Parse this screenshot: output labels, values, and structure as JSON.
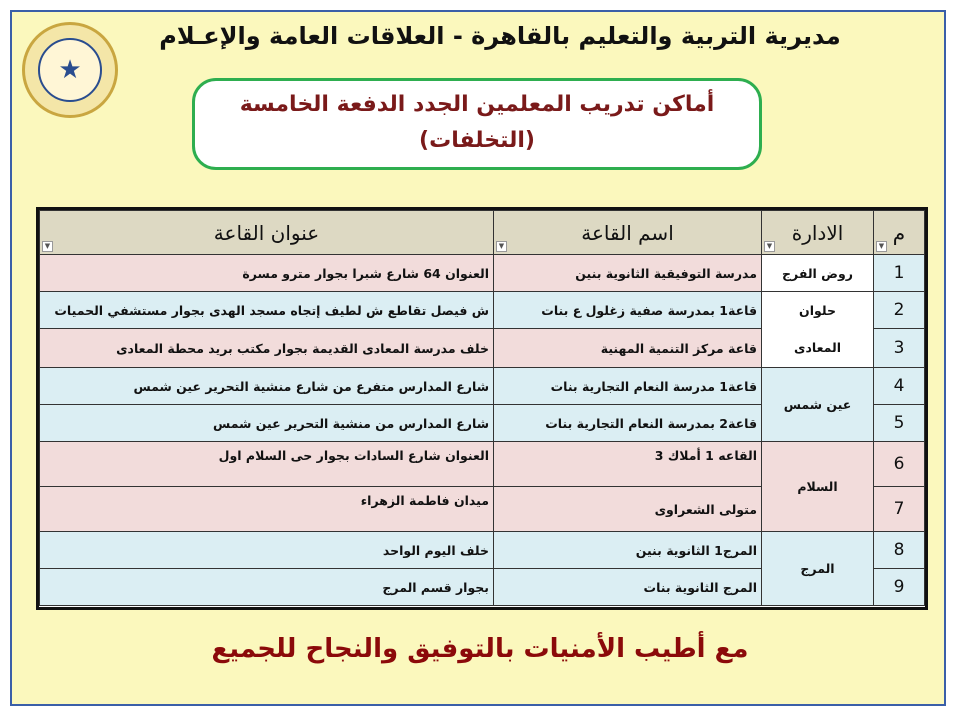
{
  "header": {
    "title": "مديرية التربية والتعليم بالقاهرة - العلاقات العامة والإعـلام",
    "logo_text": "مديرية التربية والتعليم بالقاهرة - العلاقات العامة والإعلام",
    "subtitle_line1": "أماكن تدريب المعلمين الجدد الدفعة الخامسة",
    "subtitle_line2": "(التخلفات)"
  },
  "table": {
    "columns": [
      "م",
      "الادارة",
      "اسم القاعة",
      "عنوان القاعة"
    ],
    "filter_icon": "dropdown-arrow",
    "rows": [
      {
        "n": "1",
        "hall": "مدرسة التوفيقية الثانوية بنين",
        "address": "العنوان 64 شارع شبرا بجوار مترو مسرة"
      },
      {
        "n": "2",
        "hall": "قاعة1 بمدرسة صفية زغلول ع بنات",
        "address": "ش فيصل تقاطع ش لطيف إتجاه مسجد الهدى بجوار مستشفي الحميات"
      },
      {
        "n": "3",
        "hall": "قاعة مركز التنمية المهنية",
        "address": "خلف مدرسة المعادى القديمة بجوار مكتب بريد محطة المعادى"
      },
      {
        "n": "4",
        "hall": "قاعة1 مدرسة النعام التجارية بنات",
        "address": "شارع المدارس متفرع من شارع منشية التحرير عين شمس"
      },
      {
        "n": "5",
        "hall": "قاعة2 بمدرسة النعام التجارية بنات",
        "address": "شارع المدارس من منشية التحرير عين شمس"
      },
      {
        "n": "6",
        "hall": "القاعه 1 أملاك 3",
        "address": "العنوان شارع السادات بجوار حى السلام اول"
      },
      {
        "n": "7",
        "hall": "متولى الشعراوى",
        "address": "ميدان فاطمة الزهراء"
      },
      {
        "n": "8",
        "hall": "المرج1 الثانوية بنين",
        "address": "خلف اليوم الواحد"
      },
      {
        "n": "9",
        "hall": "المرج الثانوية بنات",
        "address": "بجوار قسم المرج"
      }
    ],
    "administrations": [
      "روض الفرج",
      "حلوان",
      "المعادى",
      "عين شمس",
      "السلام",
      "المرج"
    ],
    "colors": {
      "header": "#ddd9c3",
      "pink": "#f2dcdb",
      "blue": "#dbeef3"
    }
  },
  "footer": {
    "text": "مع أطيب الأمنيات بالتوفيق والنجاح للجميع"
  }
}
